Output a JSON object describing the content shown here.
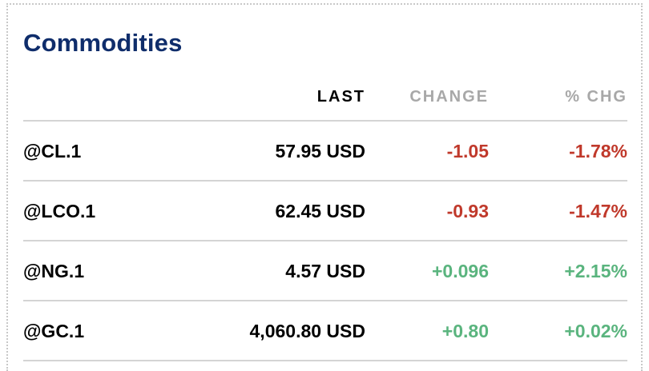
{
  "widget": {
    "title": "Commodities"
  },
  "columns": {
    "last": "LAST",
    "change": "CHANGE",
    "pct_chg": "% CHG"
  },
  "colors": {
    "title": "#0f2d6b",
    "negative": "#c0392b",
    "positive": "#5ab47e",
    "header_text": "#a8a8a8"
  },
  "rows": [
    {
      "symbol": "@CL.1",
      "last": "57.95 USD",
      "change": "-1.05",
      "pct_chg": "-1.78%",
      "direction": "down"
    },
    {
      "symbol": "@LCO.1",
      "last": "62.45 USD",
      "change": "-0.93",
      "pct_chg": "-1.47%",
      "direction": "down"
    },
    {
      "symbol": "@NG.1",
      "last": "4.57 USD",
      "change": "+0.096",
      "pct_chg": "+2.15%",
      "direction": "up"
    },
    {
      "symbol": "@GC.1",
      "last": "4,060.80 USD",
      "change": "+0.80",
      "pct_chg": "+0.02%",
      "direction": "up"
    }
  ]
}
